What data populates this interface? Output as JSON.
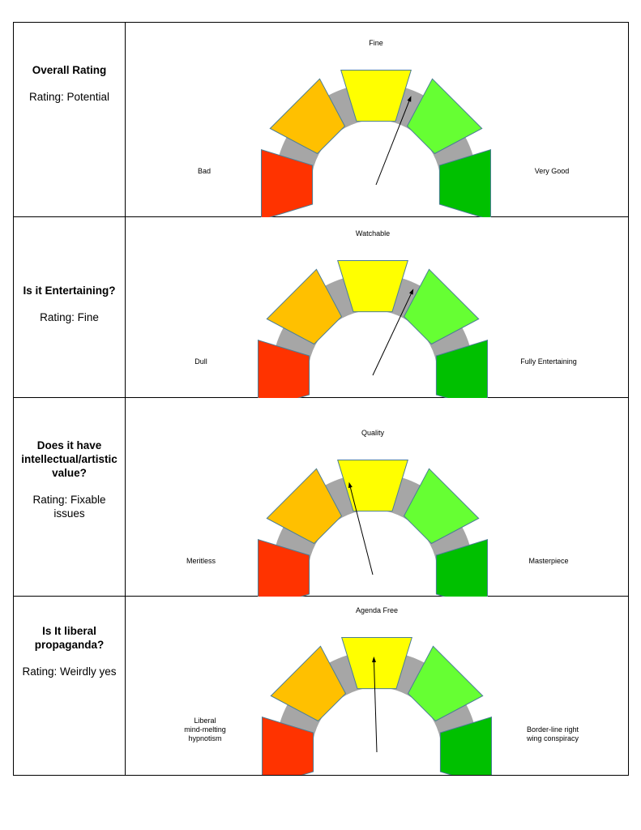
{
  "colors": {
    "bad": "#ff3300",
    "poor": "#ffc000",
    "mid": "#ffff00",
    "good": "#66ff33",
    "best": "#00c000",
    "track": "#a6a6a6",
    "outline": "#4a7d96"
  },
  "rows": [
    {
      "question": "Overall Rating",
      "rating": "Rating: Potential",
      "left_label": [
        "Bad"
      ],
      "top_label": "Fine",
      "right_label": [
        "Very Good"
      ],
      "needle_value": 0.62
    },
    {
      "question": "Is it Entertaining?",
      "rating": "Rating: Fine",
      "left_label": [
        "Dull"
      ],
      "top_label": "Watchable",
      "right_label": [
        "Fully Entertaining"
      ],
      "needle_value": 0.64
    },
    {
      "question": "Does it have intellectual/artistic value?",
      "rating": "Rating: Fixable issues",
      "left_label": [
        "Meritless"
      ],
      "top_label": "Quality",
      "right_label": [
        "Masterpiece"
      ],
      "needle_value": 0.42
    },
    {
      "question": "Is It liberal propaganda?",
      "rating": "Rating: Weirdly yes",
      "left_label": [
        "Liberal",
        "mind-melting",
        "hypnotism"
      ],
      "top_label": "Agenda Free",
      "right_label": [
        "Border-line right",
        "wing conspiracy"
      ],
      "needle_value": 0.49
    }
  ]
}
